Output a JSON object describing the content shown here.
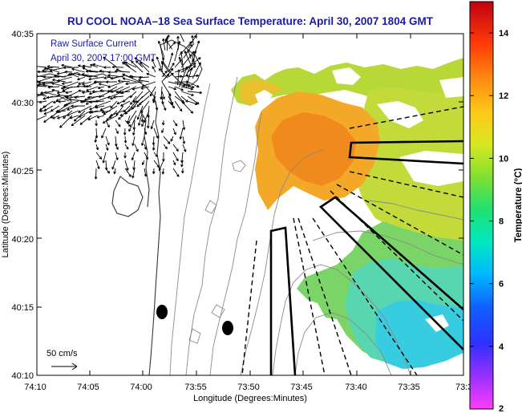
{
  "title": "RU COOL  NOAA–18  Sea Surface Temperature:  April 30, 2007 1804 GMT",
  "legend": {
    "line1": "Raw Surface Current",
    "line2": "April 30, 2007 17:00 GMT"
  },
  "scale": {
    "label": "50 cm/s"
  },
  "x_axis": {
    "label": "Longitude (Degrees:Minutes)",
    "ticks": [
      "74:10",
      "74:05",
      "74:00",
      "73:55",
      "73:50",
      "73:45",
      "73:40",
      "73:35",
      "73:3"
    ]
  },
  "y_axis": {
    "label": "Latitude (Degrees:Minutes)",
    "ticks": [
      "40:35",
      "40:30",
      "40:25",
      "40:20",
      "40:15",
      "40:10"
    ]
  },
  "colorbar": {
    "label": "Temperature (°C)",
    "min": 2,
    "max": 15,
    "tick_labels": [
      "14",
      "12",
      "10",
      "8",
      "6",
      "4",
      "2"
    ],
    "tick_values": [
      14,
      12,
      10,
      8,
      6,
      4,
      2
    ]
  },
  "colors": {
    "title": "#1a1aa6",
    "annotation": "#1a1aa6",
    "coast": "#333333",
    "bathymetry": "#8a8a8a"
  }
}
